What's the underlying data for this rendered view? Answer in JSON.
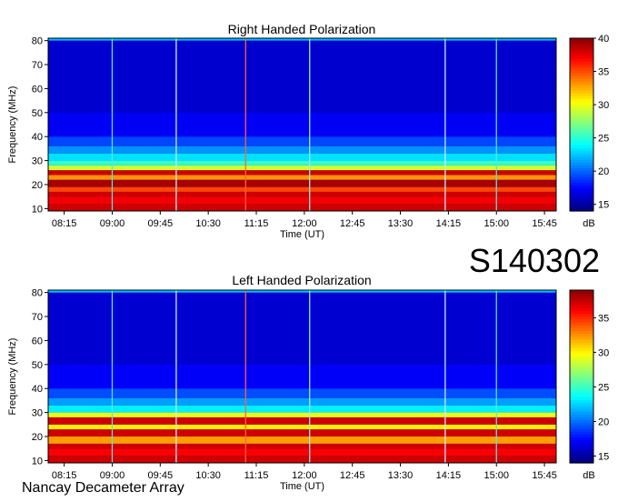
{
  "figure": {
    "code": "S140302",
    "footer": "Nancay Decameter Array"
  },
  "chart_data": [
    {
      "type": "heatmap",
      "title": "Right Handed Polarization",
      "xlabel": "Time (UT)",
      "ylabel": "Frequency (MHz)",
      "x_tick_labels": [
        "08:15",
        "09:00",
        "09:45",
        "10:30",
        "11:15",
        "12:00",
        "12:45",
        "13:30",
        "14:15",
        "15:00",
        "15:45"
      ],
      "xlim": [
        "08:00",
        "15:56"
      ],
      "y_ticks": [
        10,
        20,
        30,
        40,
        50,
        60,
        70,
        80
      ],
      "ylim": [
        9,
        81
      ],
      "colorbar": {
        "label": "dB",
        "ticks": [
          15,
          20,
          25,
          30,
          35,
          40
        ],
        "range": [
          14,
          40
        ]
      },
      "bands": [
        {
          "from": 9,
          "to": 12,
          "db": 38
        },
        {
          "from": 12,
          "to": 15,
          "db": 37
        },
        {
          "from": 15,
          "to": 17,
          "db": 38
        },
        {
          "from": 17,
          "to": 19,
          "db": 35
        },
        {
          "from": 19,
          "to": 22,
          "db": 39
        },
        {
          "from": 22,
          "to": 24,
          "db": 33
        },
        {
          "from": 24,
          "to": 26,
          "db": 38
        },
        {
          "from": 26,
          "to": 28,
          "db": 29
        },
        {
          "from": 28,
          "to": 30,
          "db": 25
        },
        {
          "from": 30,
          "to": 33,
          "db": 23
        },
        {
          "from": 33,
          "to": 36,
          "db": 21
        },
        {
          "from": 36,
          "to": 40,
          "db": 19
        },
        {
          "from": 40,
          "to": 50,
          "db": 17
        },
        {
          "from": 50,
          "to": 80,
          "db": 16
        },
        {
          "from": 80,
          "to": 81,
          "db": 22
        }
      ],
      "vertical_lines": [
        {
          "time": "09:00",
          "color": "#5fe0e0"
        },
        {
          "time": "10:00",
          "color": "#c8e8ff"
        },
        {
          "time": "11:05",
          "color": "#ff6040"
        },
        {
          "time": "12:05",
          "color": "#a0e8f0"
        },
        {
          "time": "14:12",
          "color": "#c8e8ff"
        },
        {
          "time": "15:00",
          "color": "#5fe0e0"
        }
      ]
    },
    {
      "type": "heatmap",
      "title": "Left Handed Polarization",
      "xlabel": "Time (UT)",
      "ylabel": "Frequency (MHz)",
      "x_tick_labels": [
        "08:15",
        "09:00",
        "09:45",
        "10:30",
        "11:15",
        "12:00",
        "12:45",
        "13:30",
        "14:15",
        "15:00",
        "15:45"
      ],
      "xlim": [
        "08:00",
        "15:56"
      ],
      "y_ticks": [
        10,
        20,
        30,
        40,
        50,
        60,
        70,
        80
      ],
      "ylim": [
        9,
        81
      ],
      "colorbar": {
        "label": "dB",
        "ticks": [
          15,
          20,
          25,
          30,
          35
        ],
        "range": [
          14,
          39
        ]
      },
      "bands": [
        {
          "from": 9,
          "to": 12,
          "db": 37
        },
        {
          "from": 12,
          "to": 15,
          "db": 36
        },
        {
          "from": 15,
          "to": 17,
          "db": 37
        },
        {
          "from": 17,
          "to": 20,
          "db": 32
        },
        {
          "from": 20,
          "to": 23,
          "db": 37
        },
        {
          "from": 23,
          "to": 25,
          "db": 30
        },
        {
          "from": 25,
          "to": 28,
          "db": 37
        },
        {
          "from": 28,
          "to": 30,
          "db": 29
        },
        {
          "from": 30,
          "to": 33,
          "db": 23
        },
        {
          "from": 33,
          "to": 36,
          "db": 21
        },
        {
          "from": 36,
          "to": 40,
          "db": 19
        },
        {
          "from": 40,
          "to": 50,
          "db": 17
        },
        {
          "from": 50,
          "to": 80,
          "db": 16
        },
        {
          "from": 80,
          "to": 81,
          "db": 22
        }
      ],
      "vertical_lines": [
        {
          "time": "09:00",
          "color": "#5fe0e0"
        },
        {
          "time": "10:00",
          "color": "#c8e8ff"
        },
        {
          "time": "11:05",
          "color": "#ff6040"
        },
        {
          "time": "12:05",
          "color": "#a0e8f0"
        },
        {
          "time": "14:12",
          "color": "#c8e8ff"
        },
        {
          "time": "15:00",
          "color": "#5fe0e0"
        }
      ]
    }
  ]
}
